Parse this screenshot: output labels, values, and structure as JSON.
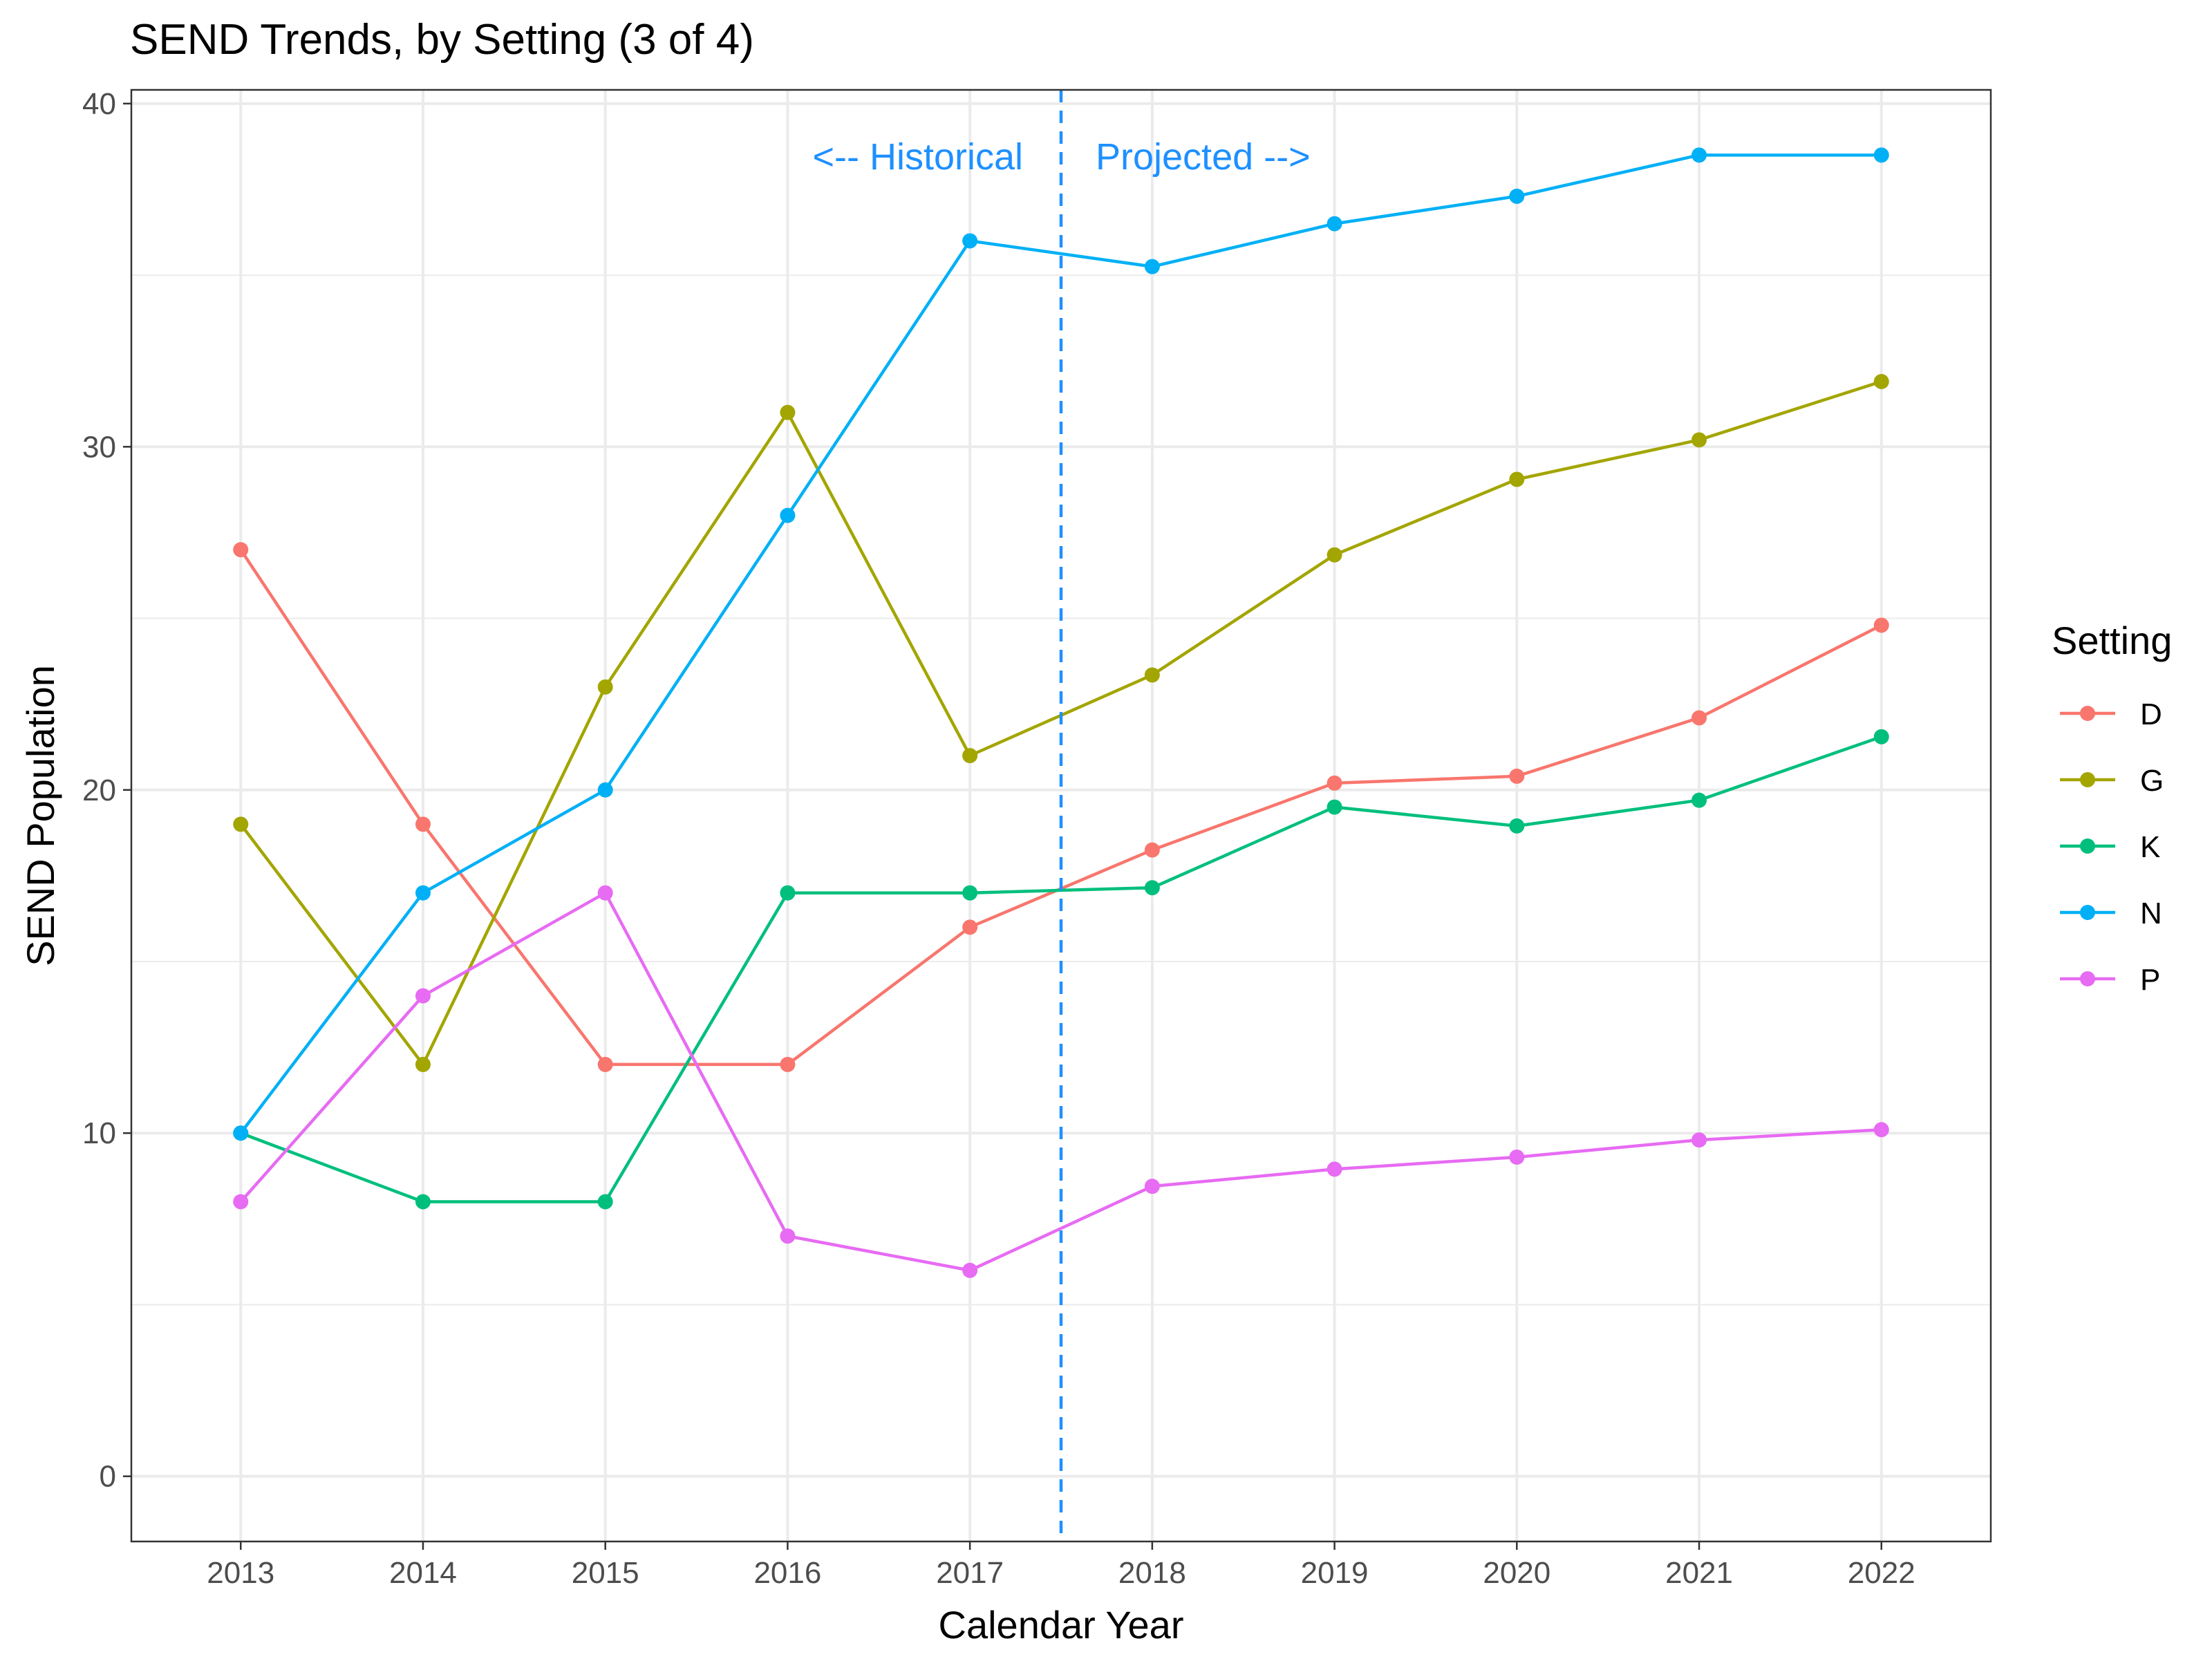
{
  "chart_data": {
    "type": "line",
    "title": "SEND Trends, by Setting (3 of 4)",
    "xlabel": "Calendar Year",
    "ylabel": "SEND Population",
    "x": [
      2013,
      2014,
      2015,
      2016,
      2017,
      2018,
      2019,
      2020,
      2021,
      2022
    ],
    "xlim": [
      2012.4,
      2022.6
    ],
    "ylim": [
      -1.9,
      40.4
    ],
    "yticks": [
      0,
      10,
      20,
      30,
      40
    ],
    "grid": true,
    "legend": {
      "title": "Setting",
      "position": "right"
    },
    "series": [
      {
        "name": "D",
        "color": "#F8766D",
        "values": [
          27,
          19,
          12,
          12,
          16,
          18.25,
          20.2,
          20.4,
          22.1,
          24.8
        ]
      },
      {
        "name": "G",
        "color": "#A3A500",
        "values": [
          19,
          12,
          23,
          31,
          21,
          23.35,
          26.85,
          29.05,
          30.2,
          31.9
        ]
      },
      {
        "name": "K",
        "color": "#00BF7D",
        "values": [
          10,
          8,
          8,
          17,
          17,
          17.15,
          19.5,
          18.95,
          19.7,
          21.55
        ]
      },
      {
        "name": "N",
        "color": "#00B0F6",
        "values": [
          10,
          17,
          20,
          28,
          36,
          35.25,
          36.5,
          37.3,
          38.5,
          38.5
        ]
      },
      {
        "name": "P",
        "color": "#E76BF3",
        "values": [
          8,
          14,
          17,
          7,
          6,
          8.45,
          8.95,
          9.3,
          9.8,
          10.1
        ]
      }
    ],
    "annotations": {
      "divider_x": 2017.5,
      "divider_color": "#1E90FF",
      "historical_label": "<-- Historical",
      "projected_label": "Projected -->"
    }
  }
}
